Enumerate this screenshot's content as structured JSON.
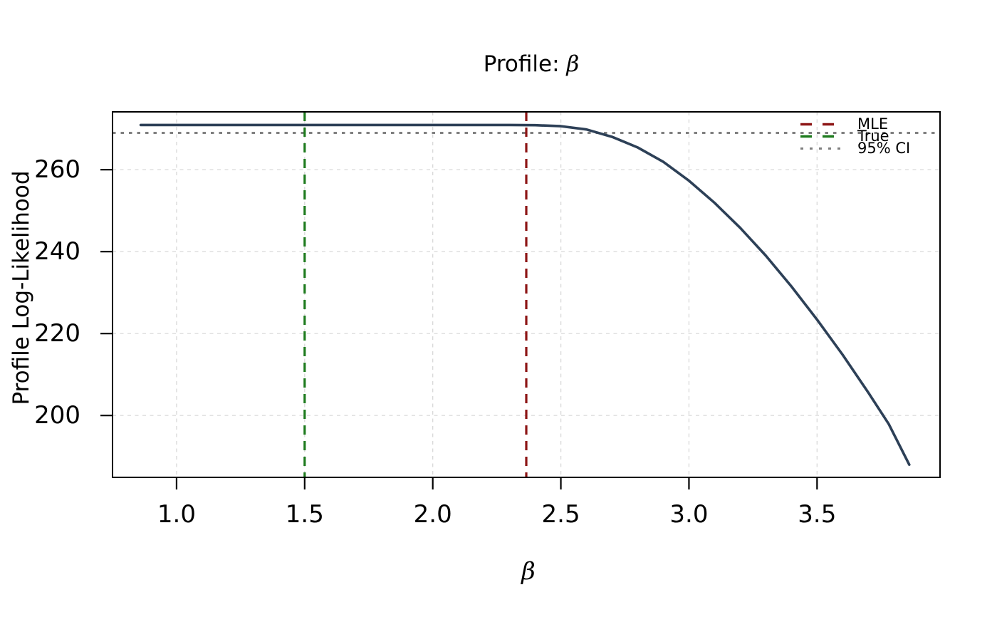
{
  "figure": {
    "background": "#ffffff",
    "text_color": "#000000"
  },
  "chart_data": {
    "type": "line",
    "title": "Profile: β",
    "xlabel": "β",
    "ylabel": "Profile Log-Likelihood",
    "xlim": [
      0.75,
      3.98
    ],
    "ylim": [
      184.9,
      274.1
    ],
    "xticks": [
      "1.0",
      "1.5",
      "2.0",
      "2.5",
      "3.0",
      "3.5"
    ],
    "xtick_values": [
      1.0,
      1.5,
      2.0,
      2.5,
      3.0,
      3.5
    ],
    "yticks": [
      "200",
      "220",
      "240",
      "260"
    ],
    "ytick_values": [
      200,
      220,
      240,
      260
    ],
    "grid": true,
    "grid_color": "#d8d8d8",
    "series": [
      {
        "name": "profile-log-likelihood",
        "color": "#2d4057",
        "points": [
          [
            0.86,
            270.9
          ],
          [
            1.0,
            270.9
          ],
          [
            1.2,
            270.9
          ],
          [
            1.4,
            270.9
          ],
          [
            1.6,
            270.9
          ],
          [
            1.8,
            270.9
          ],
          [
            2.0,
            270.9
          ],
          [
            2.15,
            270.9
          ],
          [
            2.3,
            270.9
          ],
          [
            2.4,
            270.85
          ],
          [
            2.5,
            270.6
          ],
          [
            2.6,
            269.8
          ],
          [
            2.7,
            268.0
          ],
          [
            2.8,
            265.4
          ],
          [
            2.9,
            261.9
          ],
          [
            3.0,
            257.3
          ],
          [
            3.1,
            251.9
          ],
          [
            3.2,
            245.8
          ],
          [
            3.3,
            239.0
          ],
          [
            3.4,
            231.5
          ],
          [
            3.5,
            223.4
          ],
          [
            3.6,
            214.8
          ],
          [
            3.7,
            205.6
          ],
          [
            3.78,
            197.9
          ],
          [
            3.86,
            188.0
          ]
        ]
      }
    ],
    "vlines": [
      {
        "label": "MLE",
        "x": 2.365,
        "color": "#8d1515",
        "style": "dashed"
      },
      {
        "label": "True",
        "x": 1.5,
        "color": "#1e7b1e",
        "style": "dashed"
      }
    ],
    "hlines": [
      {
        "label": "95% CI",
        "y": 268.97,
        "color": "#7f7f7f",
        "style": "dotted"
      }
    ],
    "legend": {
      "position": "upper right",
      "frame": false,
      "entries": [
        {
          "label": "MLE",
          "color": "#8d1515",
          "style": "dashed"
        },
        {
          "label": "True",
          "color": "#1e7b1e",
          "style": "dashed"
        },
        {
          "label": "95% CI",
          "color": "#7f7f7f",
          "style": "dotted"
        }
      ]
    }
  }
}
